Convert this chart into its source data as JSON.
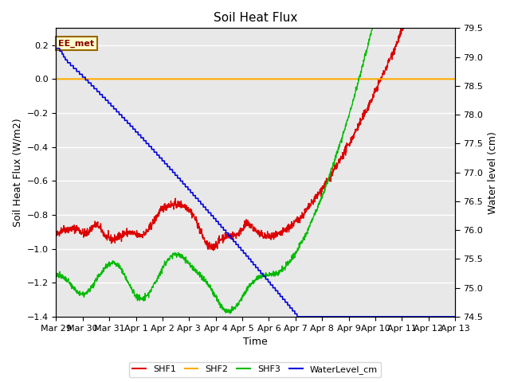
{
  "title": "Soil Heat Flux",
  "xlabel": "Time",
  "ylabel_left": "Soil Heat Flux (W/m2)",
  "ylabel_right": "Water level (cm)",
  "ylim_left": [
    -1.4,
    0.3
  ],
  "ylim_right": [
    74.5,
    79.5
  ],
  "yticks_left": [
    0.2,
    0.0,
    -0.2,
    -0.4,
    -0.6,
    -0.8,
    -1.0,
    -1.2,
    -1.4
  ],
  "yticks_right": [
    79.5,
    79.0,
    78.5,
    78.0,
    77.5,
    77.0,
    76.5,
    76.0,
    75.5,
    75.0,
    74.5
  ],
  "xtick_labels": [
    "Mar 29",
    "Mar 30",
    "Mar 31",
    "Apr 1",
    "Apr 2",
    "Apr 3",
    "Apr 4",
    "Apr 5",
    "Apr 6",
    "Apr 7",
    "Apr 8",
    "Apr 9",
    "Apr 10",
    "Apr 11",
    "Apr 12",
    "Apr 13"
  ],
  "colors": {
    "SHF1": "#dd0000",
    "SHF2": "#ffaa00",
    "SHF3": "#00bb00",
    "WaterLevel_cm": "#0000dd",
    "background": "#e8e8e8",
    "annotation_bg": "#ffffcc",
    "annotation_border": "#996600"
  },
  "annotation_text": "EE_met",
  "legend_labels": [
    "SHF1",
    "SHF2",
    "SHF3",
    "WaterLevel_cm"
  ]
}
